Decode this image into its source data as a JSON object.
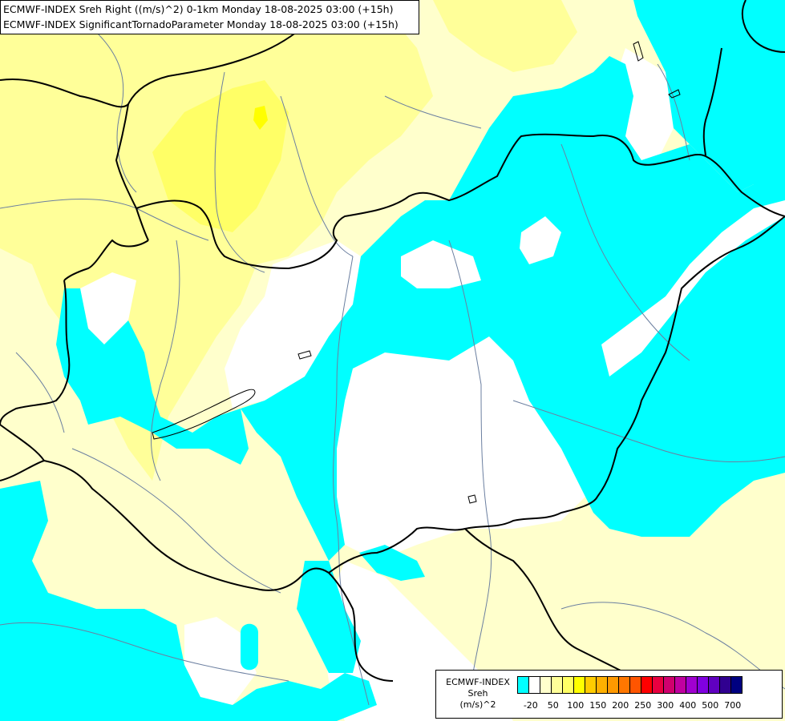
{
  "header": {
    "line1": "ECMWF-INDEX Sreh Right ((m/s)^2) 0-1km Monday 18-08-2025 03:00 (+15h)",
    "line2": "ECMWF-INDEX SignificantTornadoParameter Monday 18-08-2025 03:00 (+15h)"
  },
  "legend": {
    "title_line1": "ECMWF-INDEX",
    "title_line2": "Sreh",
    "title_line3": "(m/s)^2",
    "colors": [
      "#00ffff",
      "#ffffff",
      "#ffffcc",
      "#ffff99",
      "#ffff66",
      "#ffff00",
      "#ffcc00",
      "#ffb000",
      "#ff9900",
      "#ff7700",
      "#ff5500",
      "#ff0000",
      "#e80040",
      "#d0006e",
      "#c000a0",
      "#a000d0",
      "#8000e0",
      "#6000c0",
      "#300090",
      "#000080"
    ],
    "ticks": [
      "-20",
      "50",
      "100",
      "150",
      "200",
      "250",
      "300",
      "400",
      "500",
      "700"
    ]
  },
  "palette": {
    "cyan": "#00ffff",
    "pale_yellow": "#ffffcc",
    "light_yellow": "#ffff99",
    "yellow": "#ffff66",
    "bright_yellow": "#ffff00",
    "border_color": "#000000",
    "river_color": "#6b7fa0"
  }
}
